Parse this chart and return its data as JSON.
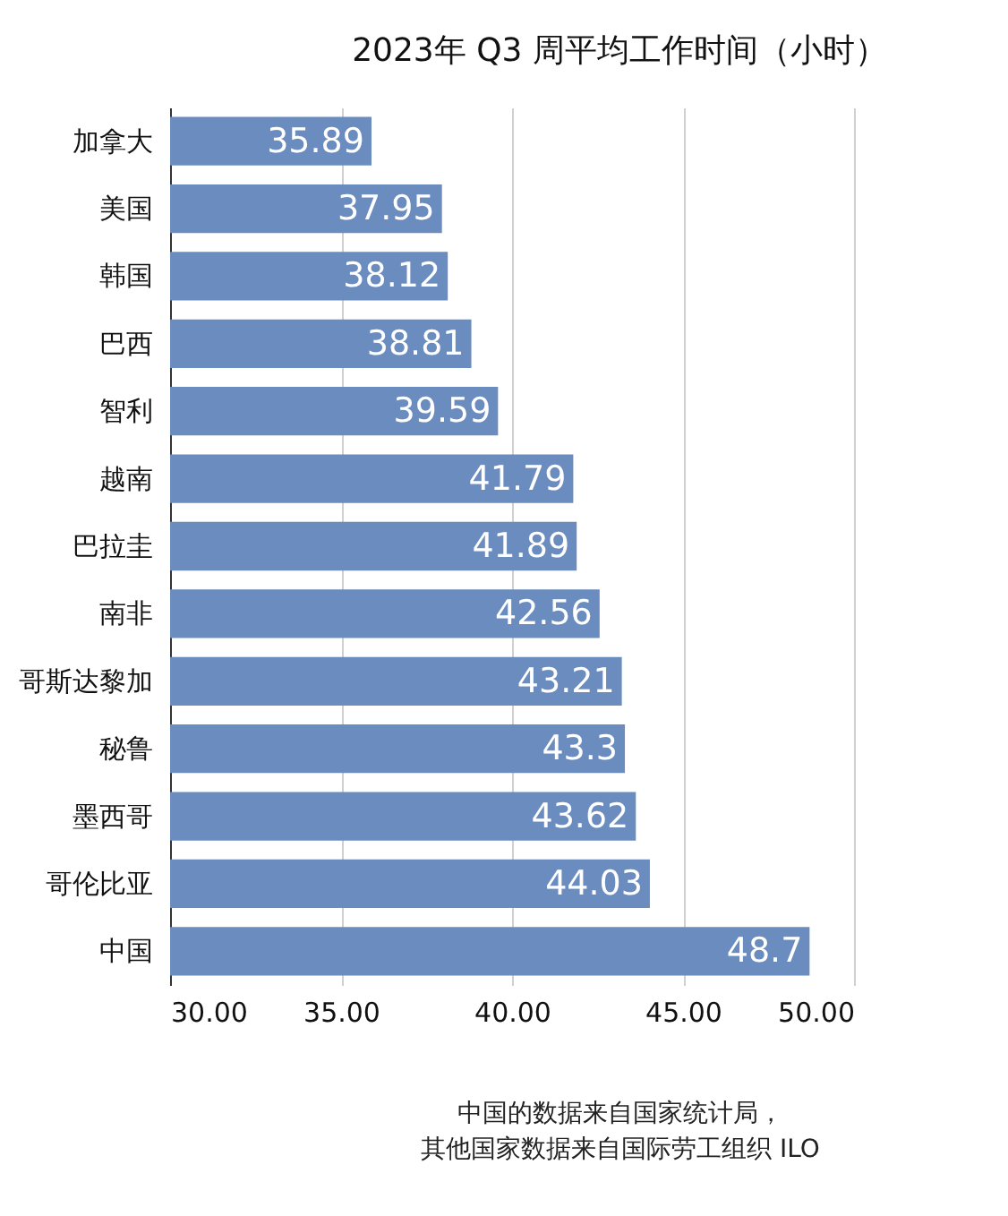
{
  "chart_data": {
    "type": "bar",
    "orientation": "horizontal",
    "title": "2023年 Q3 周平均工作时间（小时）",
    "categories": [
      "加拿大",
      "美国",
      "韩国",
      "巴西",
      "智利",
      "越南",
      "巴拉圭",
      "南非",
      "哥斯达黎加",
      "秘鲁",
      "墨西哥",
      "哥伦比亚",
      "中国"
    ],
    "values": [
      35.89,
      37.95,
      38.12,
      38.81,
      39.59,
      41.79,
      41.89,
      42.56,
      43.21,
      43.3,
      43.62,
      44.03,
      48.7
    ],
    "color": "#6b8cbf",
    "xlim": [
      30,
      50
    ],
    "xticks": [
      {
        "value": 30,
        "label": "30.00"
      },
      {
        "value": 35,
        "label": "35.00"
      },
      {
        "value": 40,
        "label": "40.00"
      },
      {
        "value": 45,
        "label": "45.00"
      },
      {
        "value": 50,
        "label": "50.00"
      }
    ],
    "grid": "x",
    "data_labels": true,
    "annotations": [
      "中国的数据来自国家统计局，",
      "其他国家数据来自国际劳工组织 ILO"
    ]
  }
}
